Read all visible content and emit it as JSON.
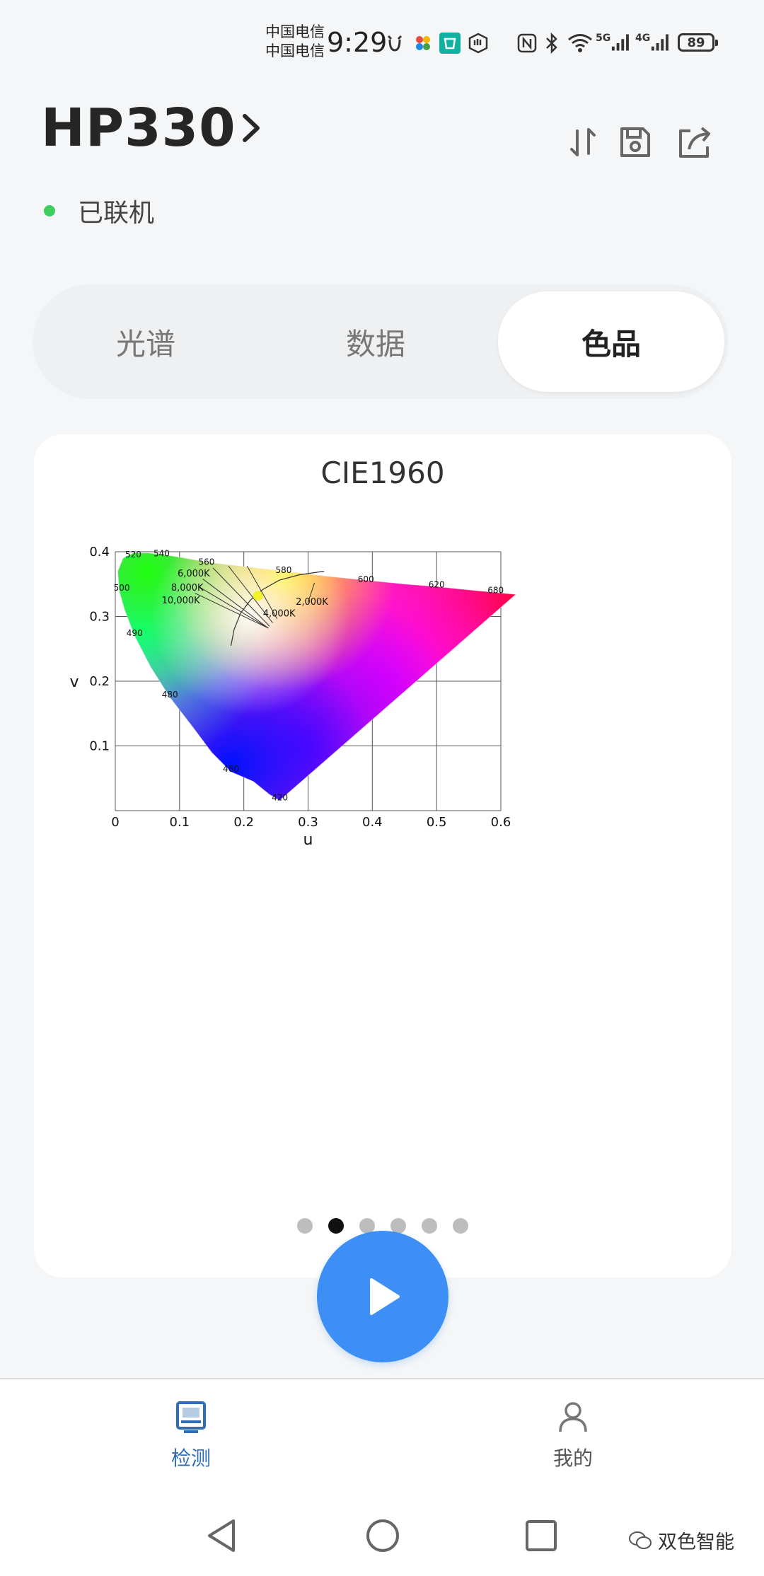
{
  "status_bar": {
    "carrier_1": "中国电信",
    "carrier_2": "中国电信",
    "time": "9:29",
    "network_1": "5G",
    "network_2": "4G",
    "battery": "89"
  },
  "header": {
    "device_name": "HP330",
    "connection_status": "已联机",
    "actions": [
      "sort-icon",
      "save-icon",
      "share-icon"
    ]
  },
  "tabs": [
    {
      "label": "光谱",
      "active": false
    },
    {
      "label": "数据",
      "active": false
    },
    {
      "label": "色品",
      "active": true
    }
  ],
  "card": {
    "title": "CIE1960"
  },
  "chart_data": {
    "type": "scatter",
    "title": "CIE1960",
    "xlabel": "u",
    "ylabel": "v",
    "xlim": [
      0,
      0.6
    ],
    "ylim": [
      0,
      0.4
    ],
    "x_ticks": [
      "0",
      "0.1",
      "0.2",
      "0.3",
      "0.4",
      "0.5",
      "0.6"
    ],
    "y_ticks": [
      "0.1",
      "0.2",
      "0.3",
      "0.4"
    ],
    "grid": true,
    "spectral_locus_labels": [
      {
        "label": "420",
        "u": 0.256,
        "v": 0.016
      },
      {
        "label": "460",
        "u": 0.18,
        "v": 0.06
      },
      {
        "label": "480",
        "u": 0.085,
        "v": 0.175
      },
      {
        "label": "490",
        "u": 0.03,
        "v": 0.27
      },
      {
        "label": "500",
        "u": 0.01,
        "v": 0.34
      },
      {
        "label": "520",
        "u": 0.028,
        "v": 0.391
      },
      {
        "label": "540",
        "u": 0.072,
        "v": 0.393
      },
      {
        "label": "560",
        "u": 0.142,
        "v": 0.38
      },
      {
        "label": "580",
        "u": 0.262,
        "v": 0.367
      },
      {
        "label": "600",
        "u": 0.39,
        "v": 0.353
      },
      {
        "label": "620",
        "u": 0.5,
        "v": 0.345
      },
      {
        "label": "680",
        "u": 0.592,
        "v": 0.336
      }
    ],
    "planckian_labels": [
      {
        "label": "2,000K",
        "u": 0.306,
        "v": 0.318
      },
      {
        "label": "4,000K",
        "u": 0.255,
        "v": 0.3
      },
      {
        "label": "6,000K",
        "u": 0.122,
        "v": 0.362
      },
      {
        "label": "8,000K",
        "u": 0.112,
        "v": 0.34
      },
      {
        "label": "10,000K",
        "u": 0.102,
        "v": 0.32
      }
    ],
    "measured_point": {
      "u": 0.222,
      "v": 0.332,
      "color": "#f3f22a"
    }
  },
  "pager": {
    "count": 6,
    "active_index": 1
  },
  "bottom_nav": [
    {
      "label": "检测",
      "active": true,
      "icon": "monitor-icon"
    },
    {
      "label": "我的",
      "active": false,
      "icon": "user-icon"
    }
  ],
  "watermark": "双色智能",
  "colors": {
    "accent": "#3d8ff5",
    "nav_active": "#2f6db5",
    "connected": "#3ecf5f"
  }
}
